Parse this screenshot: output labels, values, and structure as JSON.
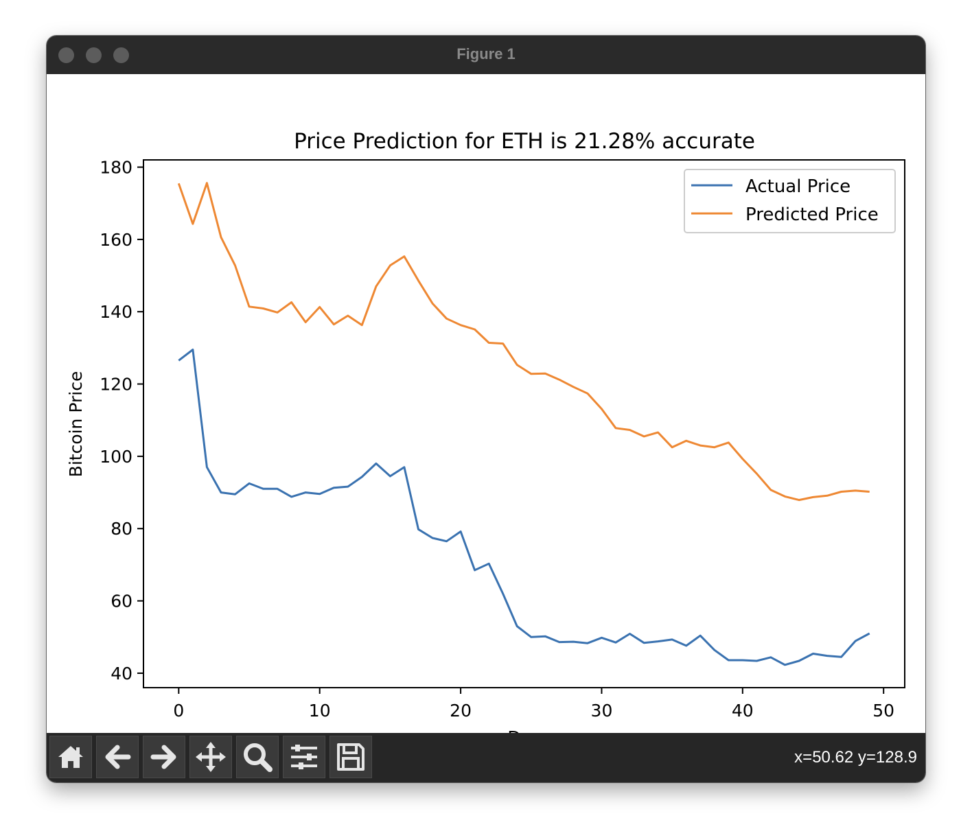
{
  "window": {
    "title": "Figure 1"
  },
  "toolbar": {
    "buttons": [
      {
        "name": "home-button",
        "icon": "home-icon"
      },
      {
        "name": "back-button",
        "icon": "arrow-left-icon"
      },
      {
        "name": "forward-button",
        "icon": "arrow-right-icon"
      },
      {
        "name": "pan-button",
        "icon": "move-icon"
      },
      {
        "name": "zoom-button",
        "icon": "magnifier-icon"
      },
      {
        "name": "configure-subplots-button",
        "icon": "sliders-icon"
      },
      {
        "name": "save-button",
        "icon": "floppy-disk-icon"
      }
    ],
    "coords": "x=50.62 y=128.9"
  },
  "colors": {
    "actual": "#3a72b0",
    "predicted": "#ee8833",
    "titlebar": "#2a2a2a",
    "toolbar": "#262626"
  },
  "chart_data": {
    "type": "line",
    "title": "Price Prediction for ETH is 21.28% accurate",
    "xlabel": "Day",
    "ylabel": "Bitcoin Price",
    "xlim": [
      -2.5,
      51.5
    ],
    "ylim": [
      36,
      182
    ],
    "xticks": [
      0,
      10,
      20,
      30,
      40,
      50
    ],
    "yticks": [
      40,
      60,
      80,
      100,
      120,
      140,
      160,
      180
    ],
    "grid": false,
    "legend": "top-right",
    "x": [
      0,
      1,
      2,
      3,
      4,
      5,
      6,
      7,
      8,
      9,
      10,
      11,
      12,
      13,
      14,
      15,
      16,
      17,
      18,
      19,
      20,
      21,
      22,
      23,
      24,
      25,
      26,
      27,
      28,
      29,
      30,
      31,
      32,
      33,
      34,
      35,
      36,
      37,
      38,
      39,
      40,
      41,
      42,
      43,
      44,
      45,
      46,
      47,
      48,
      49
    ],
    "series": [
      {
        "name": "Actual Price",
        "color": "#3a72b0",
        "values": [
          126.5,
          129.5,
          97,
          90,
          89.5,
          92.5,
          91,
          91,
          88.8,
          90,
          89.6,
          91.3,
          91.6,
          94.3,
          98,
          94.5,
          97,
          79.8,
          77.4,
          76.5,
          79.2,
          68.5,
          70.3,
          62,
          53,
          50,
          50.2,
          48.6,
          48.7,
          48.3,
          49.8,
          48.5,
          50.9,
          48.4,
          48.8,
          49.3,
          47.6,
          50.4,
          46.4,
          43.6,
          43.6,
          43.4,
          44.4,
          42.3,
          43.4,
          45.4,
          44.8,
          44.5,
          48.9,
          51
        ]
      },
      {
        "name": "Predicted Price",
        "color": "#ee8833",
        "values": [
          175.5,
          164.3,
          175.6,
          160.6,
          152.8,
          141.4,
          140.9,
          139.8,
          142.6,
          137.1,
          141.3,
          136.5,
          138.9,
          136.3,
          147,
          152.8,
          155.3,
          148.6,
          142.3,
          138.1,
          136.3,
          135.1,
          131.4,
          131.2,
          125.3,
          122.8,
          122.9,
          121.2,
          119.2,
          117.4,
          113.1,
          107.8,
          107.3,
          105.5,
          106.6,
          102.5,
          104.3,
          103,
          102.5,
          103.8,
          99.3,
          95.2,
          90.7,
          88.9,
          87.9,
          88.7,
          89.1,
          90.2,
          90.5,
          90.2
        ]
      }
    ]
  }
}
